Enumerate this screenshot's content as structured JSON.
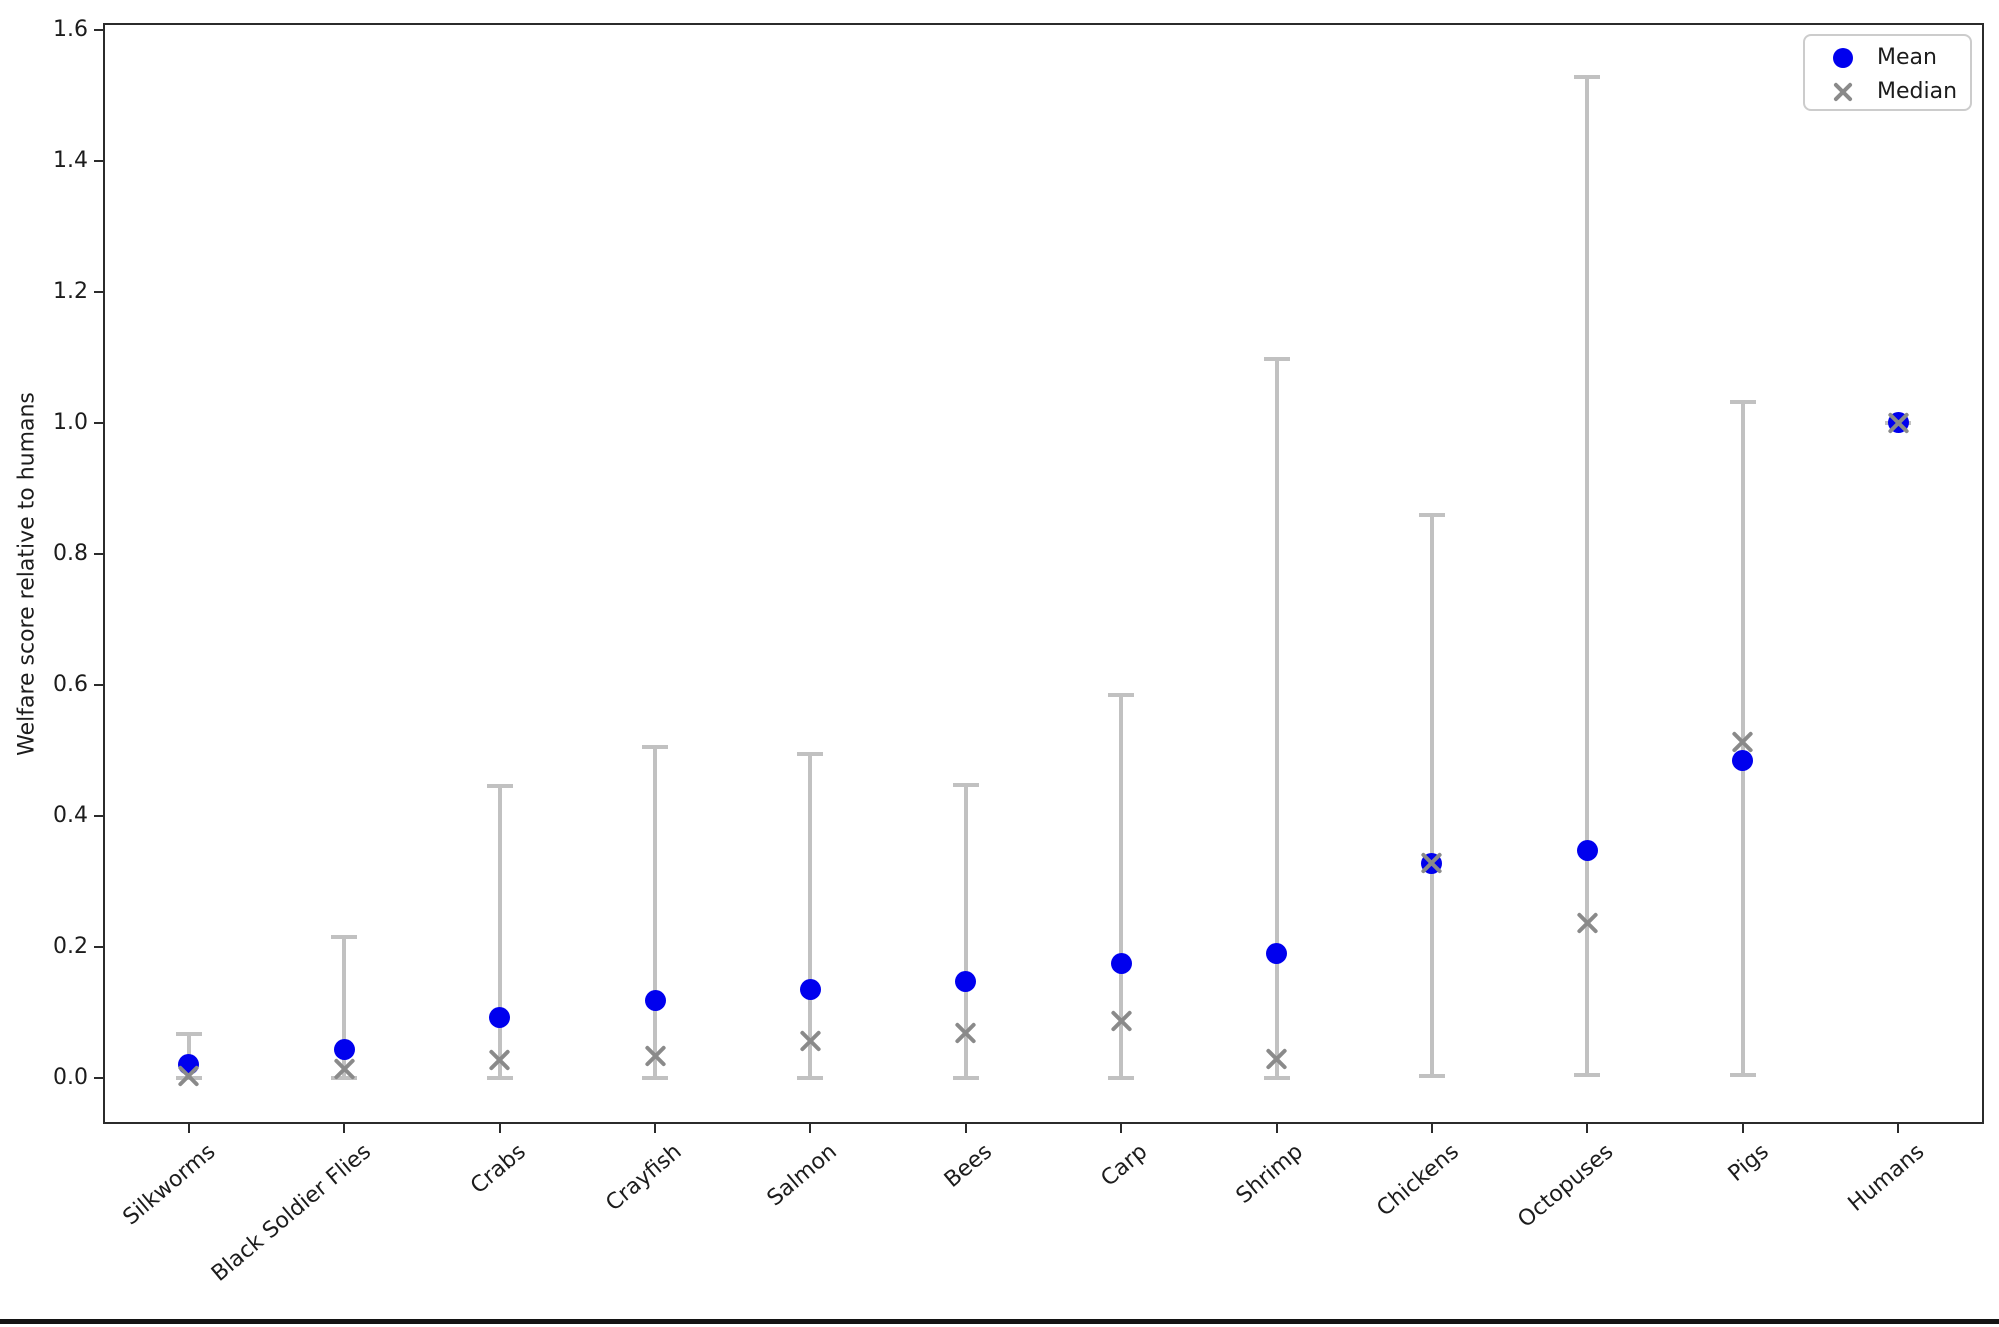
{
  "chart_data": {
    "type": "scatter",
    "title": "",
    "xlabel": "",
    "ylabel": "Welfare score relative to humans",
    "ylim": [
      -0.07,
      1.61
    ],
    "yticks": [
      0.0,
      0.2,
      0.4,
      0.6,
      0.8,
      1.0,
      1.2,
      1.4,
      1.6
    ],
    "categories": [
      "Silkworms",
      "Black Soldier Flies",
      "Crabs",
      "Crayfish",
      "Salmon",
      "Bees",
      "Carp",
      "Shrimp",
      "Chickens",
      "Octopuses",
      "Pigs",
      "Humans"
    ],
    "series": [
      {
        "name": "Mean",
        "marker": "dot",
        "color": "#0000ee",
        "values": [
          0.021,
          0.044,
          0.092,
          0.118,
          0.135,
          0.147,
          0.175,
          0.19,
          0.328,
          0.348,
          0.484,
          1.0
        ]
      },
      {
        "name": "Median",
        "marker": "x",
        "color": "#8a8a8a",
        "values": [
          0.003,
          0.014,
          0.027,
          0.034,
          0.056,
          0.069,
          0.087,
          0.029,
          0.328,
          0.237,
          0.513,
          1.0
        ]
      }
    ],
    "error_bars": {
      "color": "#c1c1c1",
      "low": [
        0.0,
        0.0,
        0.0,
        0.0,
        0.0,
        0.0,
        0.0,
        0.0,
        0.003,
        0.005,
        0.005,
        1.0
      ],
      "high": [
        0.068,
        0.215,
        0.445,
        0.505,
        0.495,
        0.448,
        0.585,
        1.098,
        0.859,
        1.528,
        1.032,
        1.0
      ]
    },
    "legend": {
      "position": "upper right",
      "entries": [
        "Mean",
        "Median"
      ]
    },
    "grid": false
  }
}
